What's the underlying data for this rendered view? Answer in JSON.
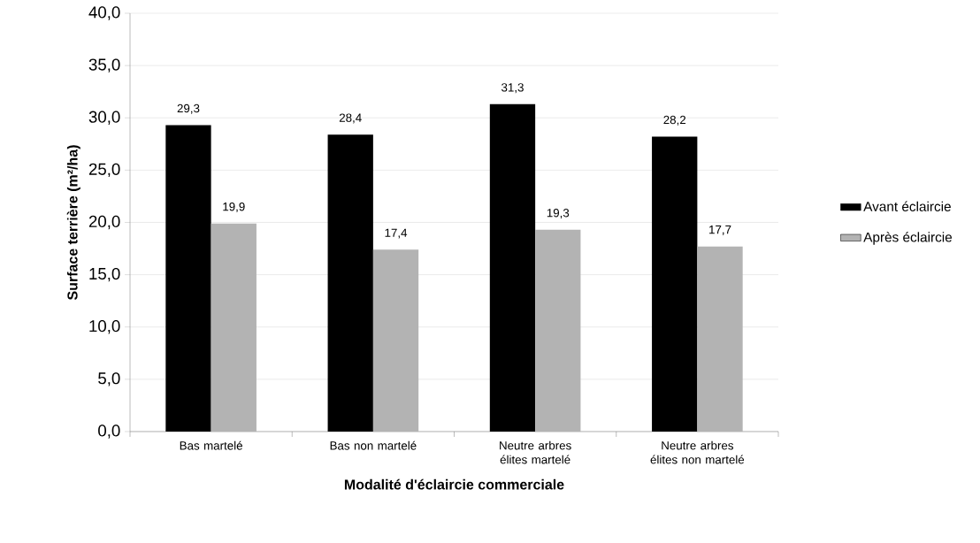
{
  "chart_data": {
    "type": "bar",
    "categories": [
      "Bas martelé",
      "Bas non martelé",
      "Neutre arbres élites martelé",
      "Neutre arbres élites non martelé"
    ],
    "series": [
      {
        "name": "Avant éclaircie",
        "color": "#000000",
        "values": [
          29.3,
          28.4,
          31.3,
          28.2
        ],
        "value_labels": [
          "29,3",
          "28,4",
          "31,3",
          "28,2"
        ]
      },
      {
        "name": "Après éclaircie",
        "color": "#b3b3b3",
        "values": [
          19.9,
          17.4,
          19.3,
          17.7
        ],
        "value_labels": [
          "19,9",
          "17,4",
          "19,3",
          "17,7"
        ]
      }
    ],
    "xlabel": "Modalité d'éclaircie commerciale",
    "ylabel": "Surface terrière (m²/ha)",
    "ylim": [
      0,
      40
    ],
    "yticks": [
      {
        "value": 0,
        "label": "0,0"
      },
      {
        "value": 5,
        "label": "5,0"
      },
      {
        "value": 10,
        "label": "10,0"
      },
      {
        "value": 15,
        "label": "15,0"
      },
      {
        "value": 20,
        "label": "20,0"
      },
      {
        "value": 25,
        "label": "25,0"
      },
      {
        "value": 30,
        "label": "30,0"
      },
      {
        "value": 35,
        "label": "35,0"
      },
      {
        "value": 40,
        "label": "40,0"
      }
    ],
    "grid": "y",
    "legend": "right"
  }
}
